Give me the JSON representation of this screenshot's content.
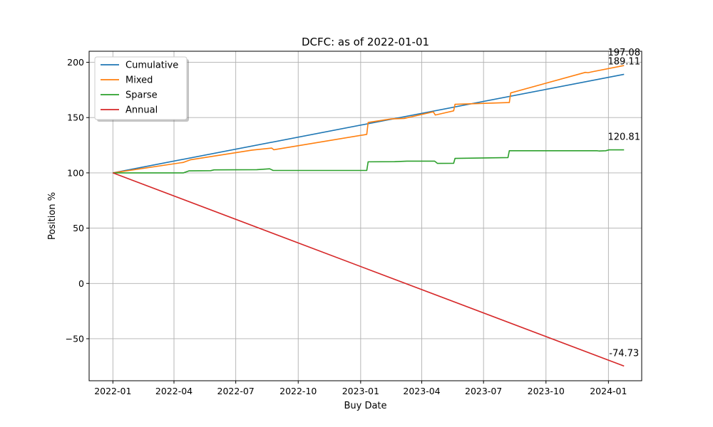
{
  "chart_data": {
    "type": "line",
    "title": "DCFC: as of 2022-01-01",
    "xlabel": "Buy Date",
    "ylabel": "Position %",
    "x_range": [
      "2021-11-27",
      "2024-02-19"
    ],
    "ylim": [
      -88,
      210
    ],
    "x_ticks": [
      {
        "date": "2022-01-01",
        "label": "2022-01"
      },
      {
        "date": "2022-04-01",
        "label": "2022-04"
      },
      {
        "date": "2022-07-01",
        "label": "2022-07"
      },
      {
        "date": "2022-10-01",
        "label": "2022-10"
      },
      {
        "date": "2023-01-01",
        "label": "2023-01"
      },
      {
        "date": "2023-04-01",
        "label": "2023-04"
      },
      {
        "date": "2023-07-01",
        "label": "2023-07"
      },
      {
        "date": "2023-10-01",
        "label": "2023-10"
      },
      {
        "date": "2024-01-01",
        "label": "2024-01"
      }
    ],
    "y_ticks": [
      {
        "value": -50,
        "label": "−50"
      },
      {
        "value": 0,
        "label": "0"
      },
      {
        "value": 50,
        "label": "50"
      },
      {
        "value": 100,
        "label": "100"
      },
      {
        "value": 150,
        "label": "150"
      },
      {
        "value": 200,
        "label": "200"
      }
    ],
    "grid": true,
    "legend": "top-left",
    "series": [
      {
        "name": "Cumulative",
        "color": "#1f77b4",
        "points": [
          [
            "2022-01-01",
            100
          ],
          [
            "2024-01-24",
            189.11
          ]
        ],
        "end_label": "189.11"
      },
      {
        "name": "Mixed",
        "color": "#ff7f0e",
        "points": [
          [
            "2022-01-01",
            100
          ],
          [
            "2022-04-15",
            109.5
          ],
          [
            "2022-04-25",
            111.8
          ],
          [
            "2022-07-25",
            120.6
          ],
          [
            "2022-08-23",
            122.4
          ],
          [
            "2022-08-26",
            120.9
          ],
          [
            "2023-01-10",
            134.8
          ],
          [
            "2023-01-12",
            145.6
          ],
          [
            "2023-02-15",
            148.8
          ],
          [
            "2023-03-06",
            149.2
          ],
          [
            "2023-04-18",
            155.2
          ],
          [
            "2023-04-21",
            152.3
          ],
          [
            "2023-05-18",
            156.1
          ],
          [
            "2023-05-20",
            162.0
          ],
          [
            "2023-08-08",
            163.6
          ],
          [
            "2023-08-10",
            172.3
          ],
          [
            "2023-11-28",
            190.9
          ],
          [
            "2023-12-02",
            190.6
          ],
          [
            "2023-12-08",
            191.4
          ],
          [
            "2024-01-24",
            197.08
          ]
        ],
        "end_label": "197.08"
      },
      {
        "name": "Sparse",
        "color": "#2ca02c",
        "points": [
          [
            "2022-01-01",
            100
          ],
          [
            "2022-04-15",
            100
          ],
          [
            "2022-04-23",
            101.8
          ],
          [
            "2022-05-25",
            102.0
          ],
          [
            "2022-05-30",
            102.7
          ],
          [
            "2022-08-01",
            102.9
          ],
          [
            "2022-08-20",
            103.7
          ],
          [
            "2022-08-25",
            102.2
          ],
          [
            "2023-01-10",
            102.2
          ],
          [
            "2023-01-12",
            110.0
          ],
          [
            "2023-02-20",
            110.1
          ],
          [
            "2023-03-10",
            110.6
          ],
          [
            "2023-04-20",
            110.6
          ],
          [
            "2023-04-24",
            108.6
          ],
          [
            "2023-05-18",
            108.7
          ],
          [
            "2023-05-20",
            113.1
          ],
          [
            "2023-08-06",
            113.8
          ],
          [
            "2023-08-08",
            120.0
          ],
          [
            "2023-12-15",
            120.0
          ],
          [
            "2023-12-18",
            119.8
          ],
          [
            "2023-12-28",
            120.0
          ],
          [
            "2024-01-02",
            120.81
          ],
          [
            "2024-01-24",
            120.81
          ]
        ],
        "end_label": "120.81"
      },
      {
        "name": "Annual",
        "color": "#d62728",
        "points": [
          [
            "2022-01-01",
            100
          ],
          [
            "2024-01-24",
            -74.73
          ]
        ],
        "end_label": "-74.73"
      }
    ]
  }
}
